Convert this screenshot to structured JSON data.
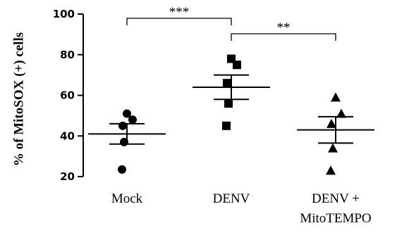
{
  "chart_data": {
    "type": "scatter",
    "ylabel": "% of MitoSOX (+) cells",
    "ylim": [
      20,
      100
    ],
    "yticks": [
      20,
      40,
      60,
      80,
      100
    ],
    "categories": [
      "Mock",
      "DENV",
      "DENV + MitoTEMPO"
    ],
    "category_lines": [
      [
        "Mock"
      ],
      [
        "DENV"
      ],
      [
        "DENV +",
        "MitoTEMPO"
      ]
    ],
    "markers": [
      "circle",
      "square",
      "triangle"
    ],
    "groups": [
      {
        "name": "Mock",
        "points": [
          51,
          48,
          45,
          37,
          23.5
        ],
        "mean": 41,
        "sem": 5
      },
      {
        "name": "DENV",
        "points": [
          78,
          75,
          66,
          56,
          45
        ],
        "mean": 64,
        "sem": 6
      },
      {
        "name": "DENV + MitoTEMPO",
        "points": [
          59,
          51,
          46,
          34,
          23
        ],
        "mean": 43,
        "sem": 6.5
      }
    ],
    "significance": [
      {
        "from": 0,
        "to": 1,
        "label": "***"
      },
      {
        "from": 1,
        "to": 2,
        "label": "**"
      }
    ],
    "grid": false,
    "legend": "none"
  }
}
